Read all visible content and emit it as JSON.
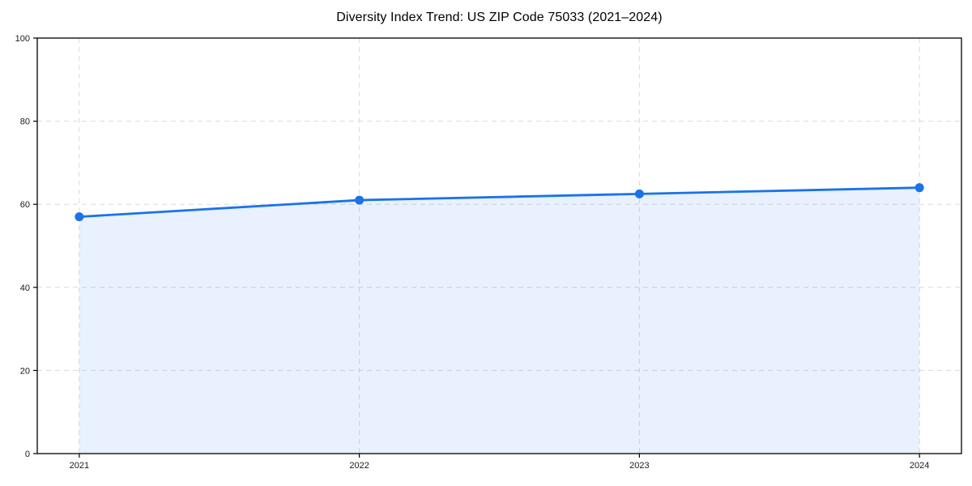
{
  "page": {
    "title": "Diversity Index Trend: US ZIP Code 75033 (2021–2024)"
  },
  "chart_data": {
    "type": "area",
    "title": "Diversity Index Trend: US ZIP Code 75033 (2021–2024)",
    "x": [
      2021,
      2022,
      2023,
      2024
    ],
    "x_tick_labels": [
      "2021",
      "2022",
      "2023",
      "2024"
    ],
    "series": [
      {
        "name": "Diversity Index",
        "values": [
          57,
          61,
          62.5,
          64
        ]
      }
    ],
    "xlabel": "",
    "ylabel": "",
    "xlim": [
      2020.85,
      2024.15
    ],
    "ylim": [
      0,
      100
    ],
    "yticks": [
      0,
      20,
      40,
      60,
      80,
      100
    ],
    "y_tick_labels": [
      "0",
      "20",
      "40",
      "60",
      "80",
      "100"
    ],
    "grid": "dashed, both axes",
    "legend": "none",
    "markers": "filled circles at each data point",
    "colors": {
      "line": "#1a73e8",
      "marker": "#1a73e8",
      "fill": "rgba(26,115,232,0.10)",
      "grid": "#d9d9d9",
      "axis": "#000000",
      "tick_text": "#1a1a1a",
      "background": "#ffffff"
    }
  }
}
